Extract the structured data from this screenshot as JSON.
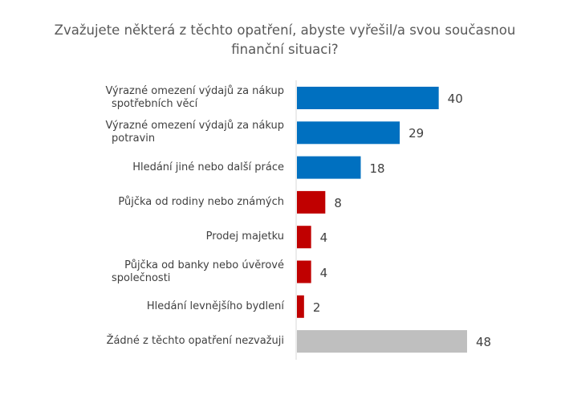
{
  "chart_data": {
    "type": "bar",
    "orientation": "horizontal",
    "title": "Zvažujete některá z těchto opatření, abyste vyřešil/a svou současnou finanční situaci?",
    "categories": [
      "Výrazné omezení výdajů za nákup spotřebních věcí",
      "Výrazné omezení výdajů za nákup potravin",
      "Hledání jiné nebo další práce",
      "Půjčka od rodiny nebo známých",
      "Prodej majetku",
      "Půjčka od banky nebo úvěrové společnosti",
      "Hledání levnějšího bydlení",
      "Žádné z těchto opatření nezvažuji"
    ],
    "category_lines": [
      [
        "Výrazné omezení výdajů za nákup",
        "spotřebních věcí"
      ],
      [
        "Výrazné omezení výdajů za nákup",
        "potravin"
      ],
      [
        "Hledání jiné nebo další práce"
      ],
      [
        "Půjčka od rodiny nebo známých"
      ],
      [
        "Prodej majetku"
      ],
      [
        "Půjčka od banky nebo úvěrové",
        "společnosti"
      ],
      [
        "Hledání levnějšího bydlení"
      ],
      [
        "Žádné z těchto opatření nezvažuji"
      ]
    ],
    "values": [
      40,
      29,
      18,
      8,
      4,
      4,
      2,
      48
    ],
    "bar_colors": [
      "#0070C0",
      "#0070C0",
      "#0070C0",
      "#C00000",
      "#C00000",
      "#C00000",
      "#C00000",
      "#BFBFBF"
    ],
    "xlim": [
      0,
      50
    ],
    "grid": false,
    "legend": "none"
  }
}
